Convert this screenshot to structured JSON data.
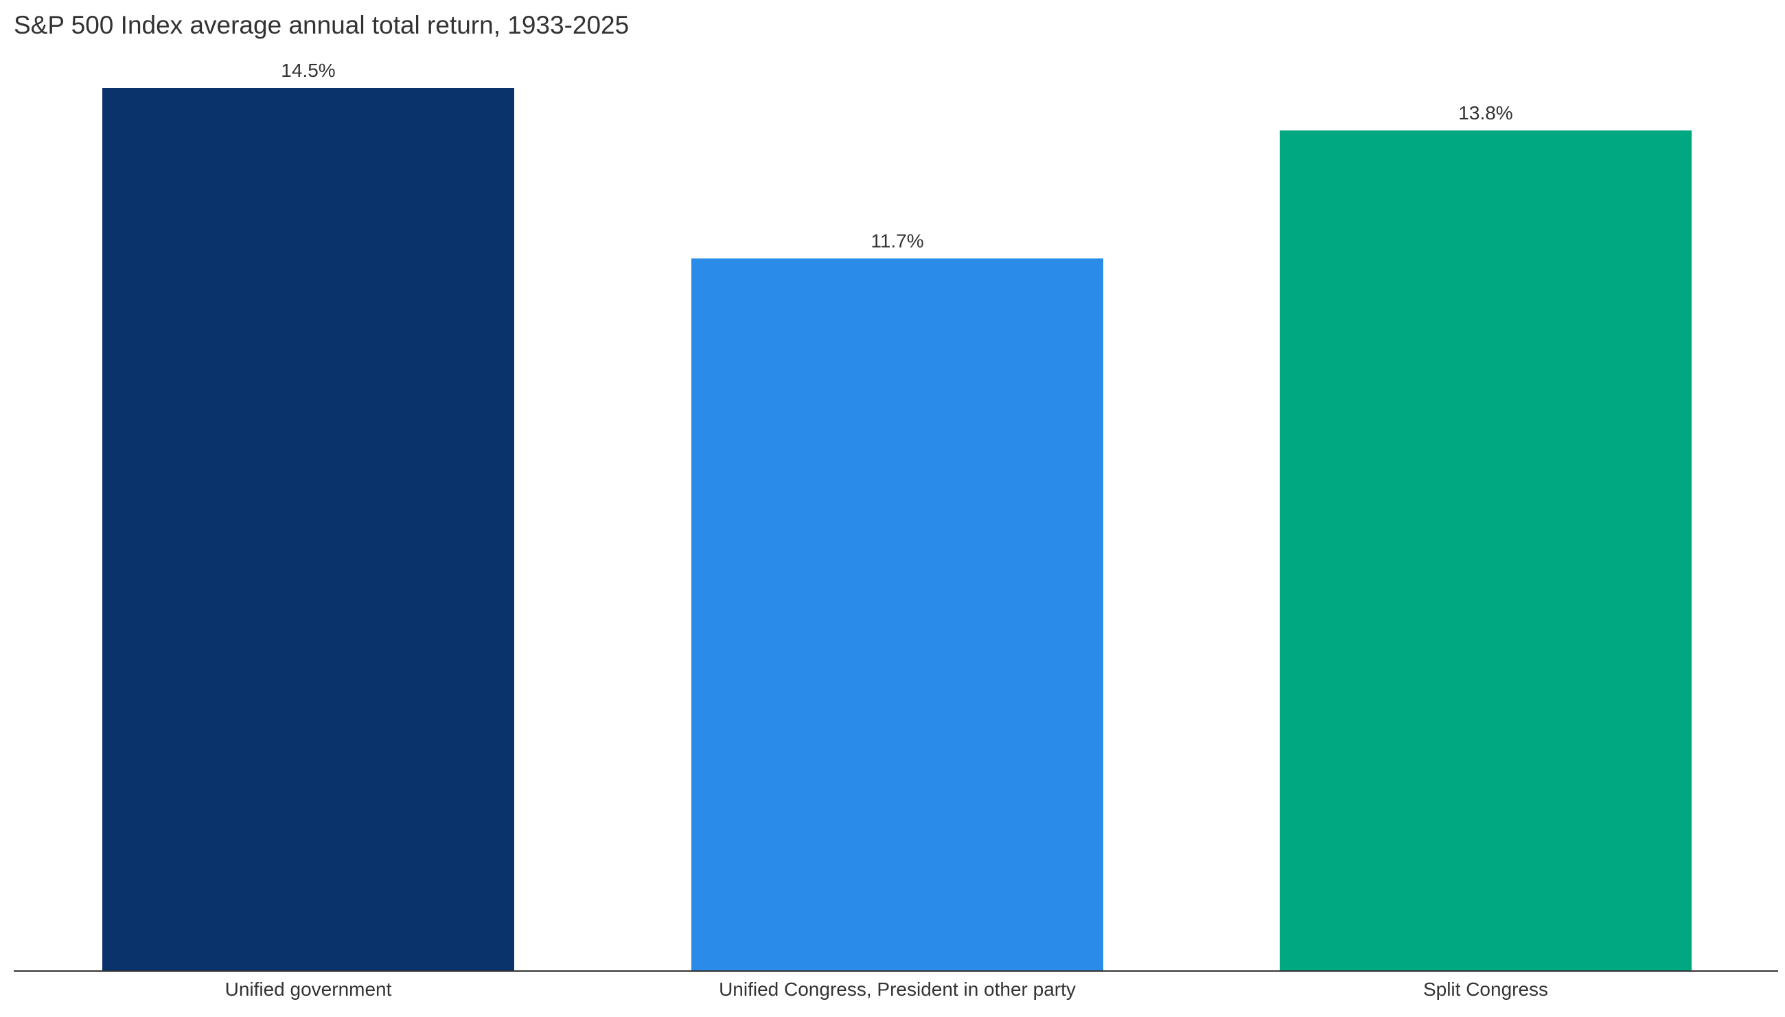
{
  "chart_data": {
    "type": "bar",
    "title": "S&P 500 Index average annual total return, 1933-2025",
    "xlabel": "",
    "ylabel": "",
    "categories": [
      "Unified government",
      "Unified Congress, President in other party",
      "Split Congress"
    ],
    "values": [
      14.5,
      11.7,
      13.8
    ],
    "value_labels": [
      "14.5%",
      "11.7%",
      "13.8%"
    ],
    "colors": [
      "#0B336B",
      "#2B8BE8",
      "#00A882"
    ],
    "ylim": [
      0,
      14.5
    ],
    "grid": false,
    "legend": "none"
  }
}
